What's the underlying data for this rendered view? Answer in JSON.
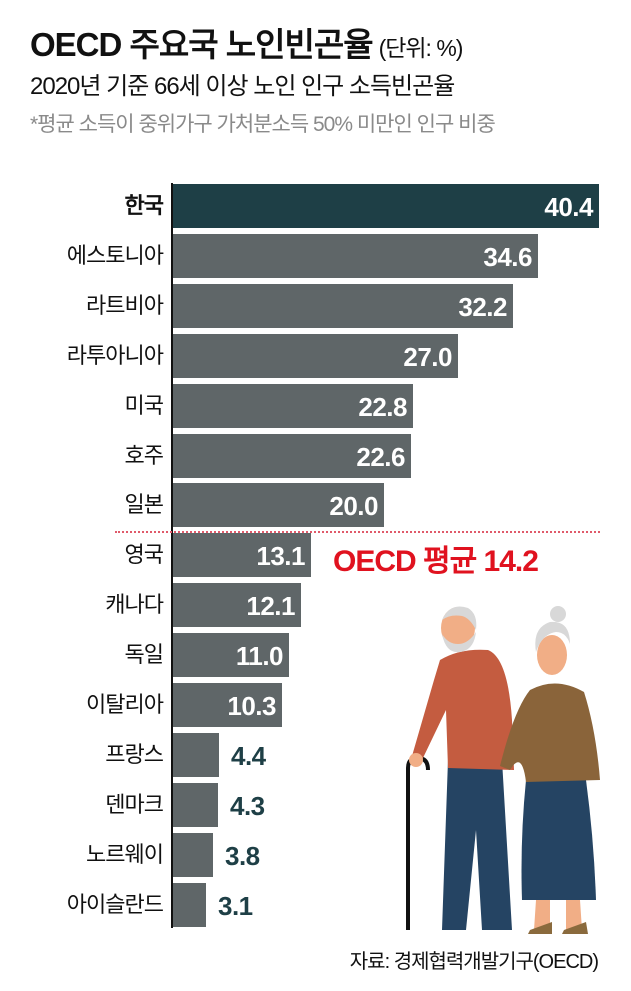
{
  "header": {
    "title": "OECD 주요국 노인빈곤율",
    "unit": "(단위: %)",
    "subtitle": "2020년 기준 66세 이상 노인 인구 소득빈곤율",
    "note": "*평균 소득이 중위가구 가처분소득 50% 미만인 인구 비중"
  },
  "rows": [
    {
      "label": "한국",
      "value": "40.4"
    },
    {
      "label": "에스토니아",
      "value": "34.6"
    },
    {
      "label": "라트비아",
      "value": "32.2"
    },
    {
      "label": "라투아니아",
      "value": "27.0"
    },
    {
      "label": "미국",
      "value": "22.8"
    },
    {
      "label": "호주",
      "value": "22.6"
    },
    {
      "label": "일본",
      "value": "20.0"
    },
    {
      "label": "영국",
      "value": "13.1"
    },
    {
      "label": "캐나다",
      "value": "12.1"
    },
    {
      "label": "독일",
      "value": "11.0"
    },
    {
      "label": "이탈리아",
      "value": "10.3"
    },
    {
      "label": "프랑스",
      "value": "4.4"
    },
    {
      "label": "덴마크",
      "value": "4.3"
    },
    {
      "label": "노르웨이",
      "value": "3.8"
    },
    {
      "label": "아이슬란드",
      "value": "3.1"
    }
  ],
  "average": {
    "label": "OECD 평균 14.2",
    "value": 14.2
  },
  "source": "자료: 경제협력개발기구(OECD)",
  "colors": {
    "highlight_bar": "#1e3f46",
    "bar": "#5f6668",
    "average": "#e0121f",
    "outside_value": "#1e3f46"
  },
  "chart_data": {
    "type": "bar",
    "orientation": "horizontal",
    "title": "OECD 주요국 노인빈곤율 (단위: %)",
    "subtitle": "2020년 기준 66세 이상 노인 인구 소득빈곤율",
    "note": "*평균 소득이 중위가구 가처분소득 50% 미만인 인구 비중",
    "categories": [
      "한국",
      "에스토니아",
      "라트비아",
      "라투아니아",
      "미국",
      "호주",
      "일본",
      "영국",
      "캐나다",
      "독일",
      "이탈리아",
      "프랑스",
      "덴마크",
      "노르웨이",
      "아이슬란드"
    ],
    "values": [
      40.4,
      34.6,
      32.2,
      27.0,
      22.8,
      22.6,
      20.0,
      13.1,
      12.1,
      11.0,
      10.3,
      4.4,
      4.3,
      3.8,
      3.1
    ],
    "highlight": "한국",
    "reference_line": {
      "label": "OECD 평균 14.2",
      "value": 14.2
    },
    "xlabel": "",
    "ylabel": "",
    "xlim": [
      0,
      40.4
    ],
    "grid": false,
    "legend": null,
    "source": "자료: 경제협력개발기구(OECD)"
  }
}
